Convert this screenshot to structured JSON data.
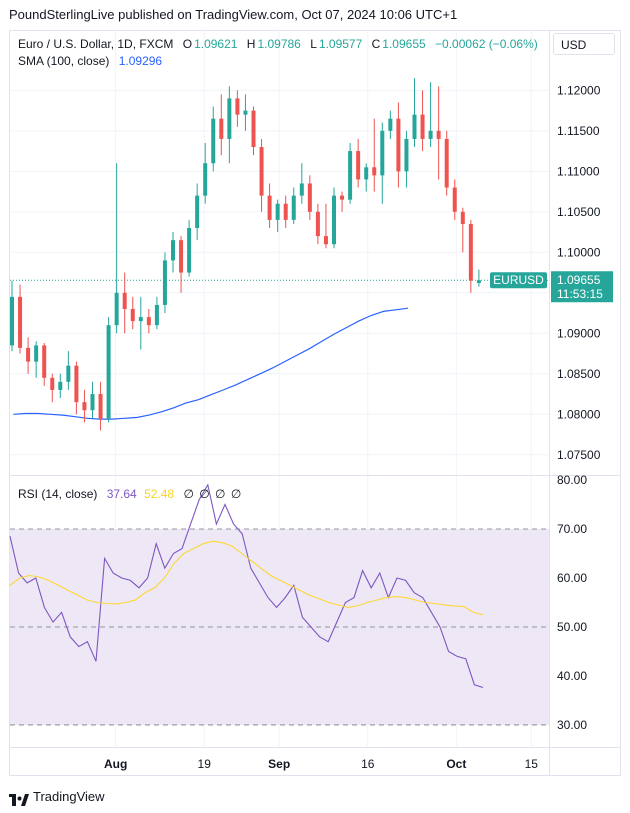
{
  "header": {
    "publisher_line": "PoundSterlingLive published on TradingView.com, Oct 07, 2024 10:06 UTC+1"
  },
  "main_legend": {
    "symbol": "Euro / U.S. Dollar, 1D, FXCM",
    "o_label": "O",
    "o_value": "1.09621",
    "h_label": "H",
    "h_value": "1.09786",
    "l_label": "L",
    "l_value": "1.09577",
    "c_label": "C",
    "c_value": "1.09655",
    "change": "−0.00062 (−0.06%)",
    "sma_label": "SMA (100, close)",
    "sma_value": "1.09296"
  },
  "currency_button": "USD",
  "price_tag": {
    "symbol": "EURUSD",
    "price": "1.09655",
    "countdown": "11:53:15"
  },
  "rsi_legend": {
    "label": "RSI (14, close)",
    "rsi_value": "37.64",
    "ma_value": "52.48",
    "empty_values": [
      "∅",
      "∅",
      "∅",
      "∅"
    ]
  },
  "footer": {
    "brand": "TradingView"
  },
  "colors": {
    "up": "#26a69a",
    "down": "#ef5350",
    "sma": "#2962ff",
    "rsi": "#7e57c2",
    "rsi_ma": "#fdd835",
    "band": "#ede7f6"
  },
  "chart_data": [
    {
      "type": "candlestick",
      "title": "Euro / U.S. Dollar, 1D, FXCM",
      "x_ticks": [
        {
          "label": "Aug",
          "index": 15
        },
        {
          "label": "19",
          "index": 28
        },
        {
          "label": "Sep",
          "index": 39
        },
        {
          "label": "16",
          "index": 52
        },
        {
          "label": "Oct",
          "index": 65
        },
        {
          "label": "15",
          "index": 76
        }
      ],
      "y_ticks": [
        "1.07500",
        "1.08000",
        "1.08500",
        "1.09000",
        "1.09500",
        "1.10000",
        "1.10500",
        "1.11000",
        "1.11500",
        "1.12000"
      ],
      "ylim": [
        1.0725,
        1.1235
      ],
      "x_range": [
        -0.5,
        78.6
      ],
      "last_price": 1.09655,
      "candles": [
        [
          1.0885,
          1.0965,
          1.0878,
          1.0945
        ],
        [
          1.0945,
          1.096,
          1.0875,
          1.0882
        ],
        [
          1.0882,
          1.0895,
          1.085,
          1.0865
        ],
        [
          1.0865,
          1.089,
          1.0845,
          1.0885
        ],
        [
          1.0885,
          1.0888,
          1.0835,
          1.0845
        ],
        [
          1.0845,
          1.085,
          1.0815,
          1.083
        ],
        [
          1.083,
          1.085,
          1.082,
          1.084
        ],
        [
          1.084,
          1.0878,
          1.083,
          1.086
        ],
        [
          1.086,
          1.0865,
          1.08,
          1.0815
        ],
        [
          1.0815,
          1.083,
          1.079,
          1.0805
        ],
        [
          1.0805,
          1.084,
          1.0795,
          1.0825
        ],
        [
          1.0825,
          1.084,
          1.078,
          1.0795
        ],
        [
          1.0795,
          1.092,
          1.079,
          1.091
        ],
        [
          1.091,
          1.111,
          1.09,
          1.095
        ],
        [
          1.095,
          1.0975,
          1.09,
          1.093
        ],
        [
          1.093,
          1.0945,
          1.0905,
          1.0915
        ],
        [
          1.0915,
          1.0945,
          1.088,
          1.092
        ],
        [
          1.092,
          1.093,
          1.09,
          1.091
        ],
        [
          1.091,
          1.0945,
          1.0905,
          1.0935
        ],
        [
          1.0935,
          1.1,
          1.0925,
          1.099
        ],
        [
          1.099,
          1.1025,
          1.0975,
          1.1015
        ],
        [
          1.1015,
          1.102,
          1.095,
          1.0975
        ],
        [
          1.0975,
          1.104,
          1.097,
          1.103
        ],
        [
          1.103,
          1.1085,
          1.1015,
          1.107
        ],
        [
          1.107,
          1.1135,
          1.106,
          1.111
        ],
        [
          1.111,
          1.118,
          1.11,
          1.1165
        ],
        [
          1.1165,
          1.1195,
          1.112,
          1.114
        ],
        [
          1.114,
          1.1205,
          1.111,
          1.119
        ],
        [
          1.119,
          1.12,
          1.1155,
          1.117
        ],
        [
          1.117,
          1.1195,
          1.115,
          1.1175
        ],
        [
          1.1175,
          1.118,
          1.112,
          1.113
        ],
        [
          1.113,
          1.114,
          1.105,
          1.107
        ],
        [
          1.107,
          1.1085,
          1.103,
          1.104
        ],
        [
          1.104,
          1.1065,
          1.1025,
          1.106
        ],
        [
          1.106,
          1.107,
          1.103,
          1.104
        ],
        [
          1.104,
          1.108,
          1.1035,
          1.107
        ],
        [
          1.107,
          1.111,
          1.106,
          1.1085
        ],
        [
          1.1085,
          1.1095,
          1.104,
          1.105
        ],
        [
          1.105,
          1.106,
          1.101,
          1.102
        ],
        [
          1.102,
          1.106,
          1.1005,
          1.101
        ],
        [
          1.101,
          1.108,
          1.1005,
          1.107
        ],
        [
          1.107,
          1.1075,
          1.105,
          1.1065
        ],
        [
          1.1065,
          1.1135,
          1.106,
          1.1125
        ],
        [
          1.1125,
          1.114,
          1.108,
          1.109
        ],
        [
          1.109,
          1.111,
          1.1075,
          1.1105
        ],
        [
          1.1105,
          1.1165,
          1.1075,
          1.1095
        ],
        [
          1.1095,
          1.116,
          1.106,
          1.115
        ],
        [
          1.115,
          1.1175,
          1.114,
          1.1165
        ],
        [
          1.1165,
          1.1185,
          1.108,
          1.11
        ],
        [
          1.11,
          1.115,
          1.108,
          1.114
        ],
        [
          1.114,
          1.1215,
          1.113,
          1.117
        ],
        [
          1.117,
          1.12,
          1.1125,
          1.114
        ],
        [
          1.114,
          1.121,
          1.113,
          1.115
        ],
        [
          1.115,
          1.1205,
          1.109,
          1.114
        ],
        [
          1.114,
          1.115,
          1.107,
          1.108
        ],
        [
          1.108,
          1.109,
          1.104,
          1.105
        ],
        [
          1.105,
          1.1055,
          1.1,
          1.1035
        ],
        [
          1.1035,
          1.104,
          1.095,
          1.0965
        ],
        [
          1.09621,
          1.09786,
          1.09577,
          1.09655
        ]
      ],
      "sma": [
        1.08,
        1.0801,
        1.0801,
        1.08,
        1.0799,
        1.0797,
        1.0795,
        1.0794,
        1.0794,
        1.0795,
        1.0796,
        1.0799,
        1.0803,
        1.0808,
        1.0814,
        1.0818,
        1.0824,
        1.083,
        1.0836,
        1.0843,
        1.085,
        1.0857,
        1.0865,
        1.0873,
        1.0881,
        1.089,
        1.0899,
        1.0907,
        1.0915,
        1.0922,
        1.0927,
        1.0929,
        1.0931
      ],
      "sma_start_index": 0,
      "sma_step": 1.81
    },
    {
      "type": "line",
      "title": "RSI (14, close)",
      "y_ticks": [
        "30.00",
        "40.00",
        "50.00",
        "60.00",
        "70.00",
        "80.00"
      ],
      "ylim": [
        25.5,
        80
      ],
      "band": [
        30,
        70
      ],
      "midline": 50,
      "series": [
        {
          "name": "RSI",
          "values": [
            68.5,
            61,
            59,
            60,
            54,
            51,
            53,
            48,
            46,
            47,
            43,
            64,
            61,
            60,
            59.5,
            58,
            60,
            67,
            62,
            65,
            66,
            71,
            76,
            79,
            71,
            75,
            71,
            69,
            62,
            59,
            56,
            54,
            56,
            58.5,
            52,
            50,
            48,
            47,
            51,
            55,
            56,
            61.5,
            58,
            61,
            56,
            60,
            59.5,
            57,
            56,
            53,
            50,
            45,
            44,
            43.5,
            38.2,
            37.64
          ]
        },
        {
          "name": "RSI-based MA",
          "values": [
            58.5,
            60,
            60.5,
            60.2,
            59.5,
            58.5,
            57.5,
            56.5,
            55.5,
            55,
            54.8,
            54.7,
            55,
            55.5,
            57,
            58,
            60,
            63,
            65,
            66,
            67,
            67.5,
            67.2,
            66.5,
            65,
            63.5,
            62,
            60.5,
            59.5,
            58.5,
            57.5,
            56.5,
            55.8,
            55,
            54.5,
            54,
            54.3,
            55,
            55.5,
            56,
            56.2,
            56,
            55.5,
            55,
            54.8,
            54.5,
            54.3,
            54.2,
            53,
            52.48
          ]
        }
      ]
    }
  ]
}
